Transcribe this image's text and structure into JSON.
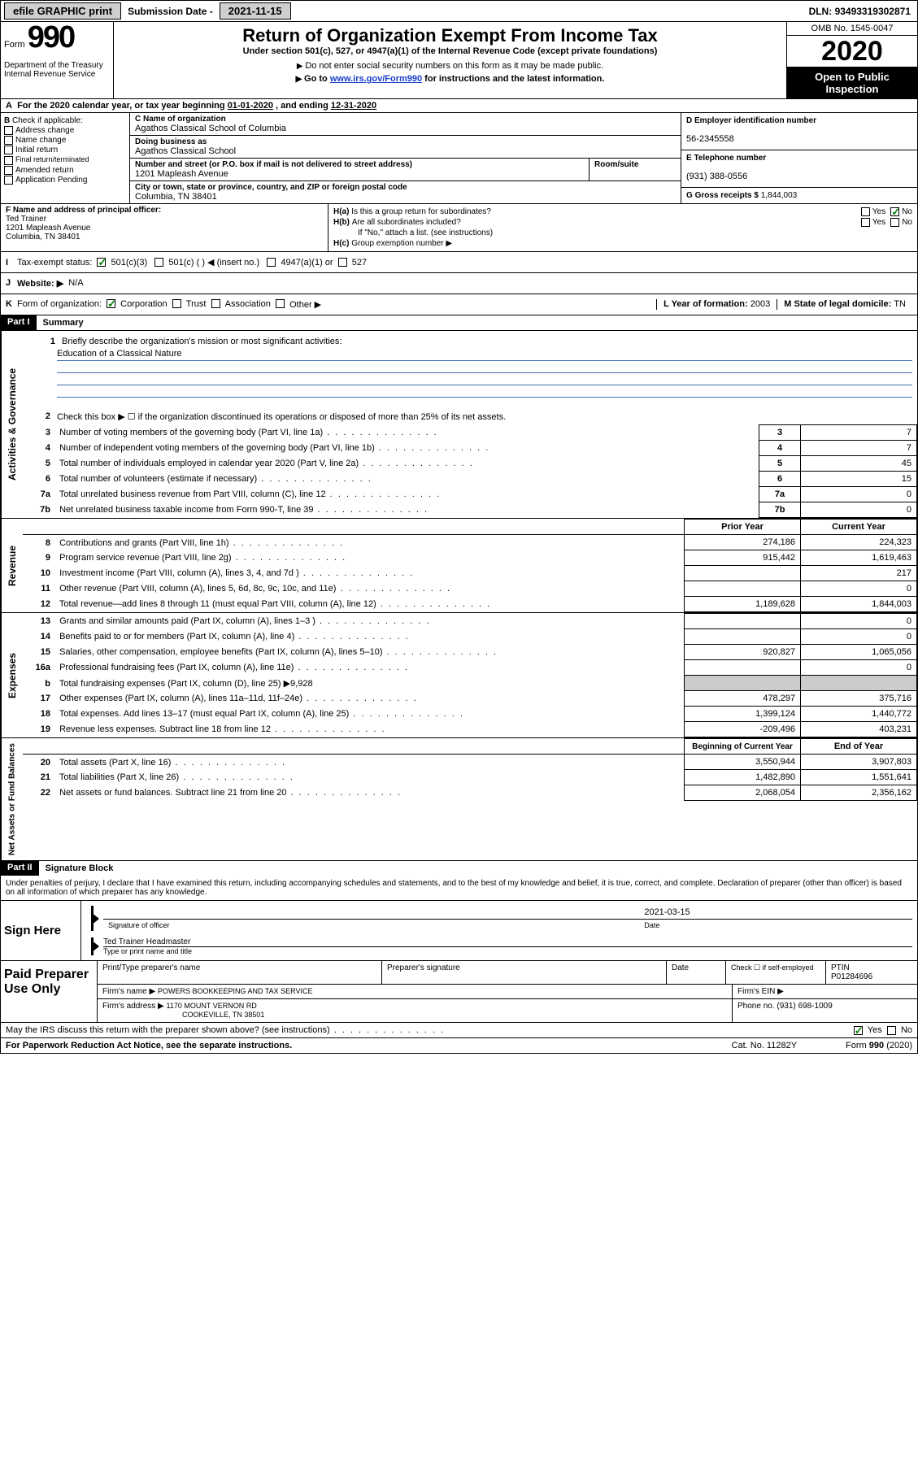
{
  "topbar": {
    "efile": "efile GRAPHIC print",
    "submission_label": "Submission Date - ",
    "submission_date": "2021-11-15",
    "dln_label": "DLN: ",
    "dln": "93493319302871"
  },
  "header": {
    "form_label": "Form",
    "form_no": "990",
    "dept": "Department of the Treasury\nInternal Revenue Service",
    "title": "Return of Organization Exempt From Income Tax",
    "subtitle": "Under section 501(c), 527, or 4947(a)(1) of the Internal Revenue Code (except private foundations)",
    "note1": "Do not enter social security numbers on this form as it may be made public.",
    "note2_pre": "Go to ",
    "note2_link": "www.irs.gov/Form990",
    "note2_post": " for instructions and the latest information.",
    "omb": "OMB No. 1545-0047",
    "year": "2020",
    "open": "Open to Public Inspection"
  },
  "row_a": {
    "text_pre": "For the 2020 calendar year, or tax year beginning ",
    "begin": "01-01-2020",
    "mid": " , and ending ",
    "end": "12-31-2020"
  },
  "col_b": {
    "label": "Check if applicable:",
    "items": [
      "Address change",
      "Name change",
      "Initial return",
      "Final return/terminated",
      "Amended return",
      "Application Pending"
    ]
  },
  "col_c": {
    "name_label": "Name of organization",
    "name": "Agathos Classical School of Columbia",
    "dba_label": "Doing business as",
    "dba": "Agathos Classical School",
    "addr_label": "Number and street (or P.O. box if mail is not delivered to street address)",
    "room_label": "Room/suite",
    "addr": "1201 Mapleash Avenue",
    "city_label": "City or town, state or province, country, and ZIP or foreign postal code",
    "city": "Columbia, TN  38401"
  },
  "col_d": {
    "ein_label": "Employer identification number",
    "ein": "56-2345558",
    "phone_label": "Telephone number",
    "phone": "(931) 388-0556",
    "gross_label": "Gross receipts $ ",
    "gross": "1,844,003"
  },
  "row_f": {
    "label": "Name and address of principal officer:",
    "name": "Ted Trainer",
    "addr1": "1201 Mapleash Avenue",
    "addr2": "Columbia, TN  38401"
  },
  "row_h": {
    "a_label": "Is this a group return for subordinates?",
    "b_label": "Are all subordinates included?",
    "b_note": "If \"No,\" attach a list. (see instructions)",
    "c_label": "Group exemption number ▶",
    "yes": "Yes",
    "no": "No"
  },
  "row_i": {
    "label": "Tax-exempt status:",
    "opt1": "501(c)(3)",
    "opt2": "501(c) (   ) ◀ (insert no.)",
    "opt3": "4947(a)(1) or",
    "opt4": "527"
  },
  "row_j": {
    "label": "Website: ▶",
    "val": "N/A"
  },
  "row_k": {
    "label": "Form of organization:",
    "opts": [
      "Corporation",
      "Trust",
      "Association",
      "Other ▶"
    ],
    "l_label": "Year of formation: ",
    "l_val": "2003",
    "m_label": "State of legal domicile: ",
    "m_val": "TN"
  },
  "part1": {
    "header": "Part I",
    "title": "Summary",
    "line1_label": "Briefly describe the organization's mission or most significant activities:",
    "line1_val": "Education of a Classical Nature",
    "line2": "Check this box ▶ ☐  if the organization discontinued its operations or disposed of more than 25% of its net assets.",
    "gov_label": "Activities & Governance",
    "rev_label": "Revenue",
    "exp_label": "Expenses",
    "net_label": "Net Assets or Fund Balances",
    "rows_gov": [
      {
        "n": "3",
        "t": "Number of voting members of the governing body (Part VI, line 1a)",
        "v": "7"
      },
      {
        "n": "4",
        "t": "Number of independent voting members of the governing body (Part VI, line 1b)",
        "v": "7"
      },
      {
        "n": "5",
        "t": "Total number of individuals employed in calendar year 2020 (Part V, line 2a)",
        "v": "45"
      },
      {
        "n": "6",
        "t": "Total number of volunteers (estimate if necessary)",
        "v": "15"
      },
      {
        "n": "7a",
        "t": "Total unrelated business revenue from Part VIII, column (C), line 12",
        "v": "0"
      },
      {
        "n": "7b",
        "t": "Net unrelated business taxable income from Form 990-T, line 39",
        "v": "0",
        "sub": true
      }
    ],
    "col_prior": "Prior Year",
    "col_current": "Current Year",
    "rows_rev": [
      {
        "n": "8",
        "t": "Contributions and grants (Part VIII, line 1h)",
        "p": "274,186",
        "c": "224,323"
      },
      {
        "n": "9",
        "t": "Program service revenue (Part VIII, line 2g)",
        "p": "915,442",
        "c": "1,619,463"
      },
      {
        "n": "10",
        "t": "Investment income (Part VIII, column (A), lines 3, 4, and 7d )",
        "p": "",
        "c": "217"
      },
      {
        "n": "11",
        "t": "Other revenue (Part VIII, column (A), lines 5, 6d, 8c, 9c, 10c, and 11e)",
        "p": "",
        "c": "0"
      },
      {
        "n": "12",
        "t": "Total revenue—add lines 8 through 11 (must equal Part VIII, column (A), line 12)",
        "p": "1,189,628",
        "c": "1,844,003"
      }
    ],
    "rows_exp": [
      {
        "n": "13",
        "t": "Grants and similar amounts paid (Part IX, column (A), lines 1–3 )",
        "p": "",
        "c": "0"
      },
      {
        "n": "14",
        "t": "Benefits paid to or for members (Part IX, column (A), line 4)",
        "p": "",
        "c": "0"
      },
      {
        "n": "15",
        "t": "Salaries, other compensation, employee benefits (Part IX, column (A), lines 5–10)",
        "p": "920,827",
        "c": "1,065,056"
      },
      {
        "n": "16a",
        "t": "Professional fundraising fees (Part IX, column (A), line 11e)",
        "p": "",
        "c": "0"
      },
      {
        "n": "b",
        "t": "Total fundraising expenses (Part IX, column (D), line 25) ▶9,928",
        "p": null,
        "c": null,
        "shaded": true
      },
      {
        "n": "17",
        "t": "Other expenses (Part IX, column (A), lines 11a–11d, 11f–24e)",
        "p": "478,297",
        "c": "375,716"
      },
      {
        "n": "18",
        "t": "Total expenses. Add lines 13–17 (must equal Part IX, column (A), line 25)",
        "p": "1,399,124",
        "c": "1,440,772"
      },
      {
        "n": "19",
        "t": "Revenue less expenses. Subtract line 18 from line 12",
        "p": "-209,496",
        "c": "403,231"
      }
    ],
    "col_begin": "Beginning of Current Year",
    "col_end": "End of Year",
    "rows_net": [
      {
        "n": "20",
        "t": "Total assets (Part X, line 16)",
        "p": "3,550,944",
        "c": "3,907,803"
      },
      {
        "n": "21",
        "t": "Total liabilities (Part X, line 26)",
        "p": "1,482,890",
        "c": "1,551,641"
      },
      {
        "n": "22",
        "t": "Net assets or fund balances. Subtract line 21 from line 20",
        "p": "2,068,054",
        "c": "2,356,162"
      }
    ]
  },
  "part2": {
    "header": "Part II",
    "title": "Signature Block",
    "perjury": "Under penalties of perjury, I declare that I have examined this return, including accompanying schedules and statements, and to the best of my knowledge and belief, it is true, correct, and complete. Declaration of preparer (other than officer) is based on all information of which preparer has any knowledge.",
    "sign_here": "Sign Here",
    "sig_officer": "Signature of officer",
    "date_label": "Date",
    "date_val": "2021-03-15",
    "name_title": "Ted Trainer  Headmaster",
    "type_label": "Type or print name and title",
    "paid_prep": "Paid Preparer Use Only",
    "prep_name_label": "Print/Type preparer's name",
    "prep_sig_label": "Preparer's signature",
    "check_self": "Check ☐ if self-employed",
    "ptin_label": "PTIN",
    "ptin": "P01284696",
    "firm_name_label": "Firm's name    ▶ ",
    "firm_name": "POWERS BOOKKEEPING AND TAX SERVICE",
    "firm_ein_label": "Firm's EIN ▶",
    "firm_addr_label": "Firm's address ▶ ",
    "firm_addr1": "1170 MOUNT VERNON RD",
    "firm_addr2": "COOKEVILLE, TN  38501",
    "firm_phone_label": "Phone no. ",
    "firm_phone": "(931) 698-1009",
    "discuss": "May the IRS discuss this return with the preparer shown above? (see instructions)"
  },
  "footer": {
    "left": "For Paperwork Reduction Act Notice, see the separate instructions.",
    "mid": "Cat. No. 11282Y",
    "right": "Form 990 (2020)"
  },
  "letters": {
    "A": "A",
    "B": "B",
    "C": "C",
    "D": "D",
    "E": "E",
    "F": "F",
    "G": "G",
    "H": "H",
    "I": "I",
    "J": "J",
    "K": "K",
    "L": "L",
    "M": "M",
    "Ha": "H(a)",
    "Hb": "H(b)",
    "Hc": "H(c)"
  }
}
